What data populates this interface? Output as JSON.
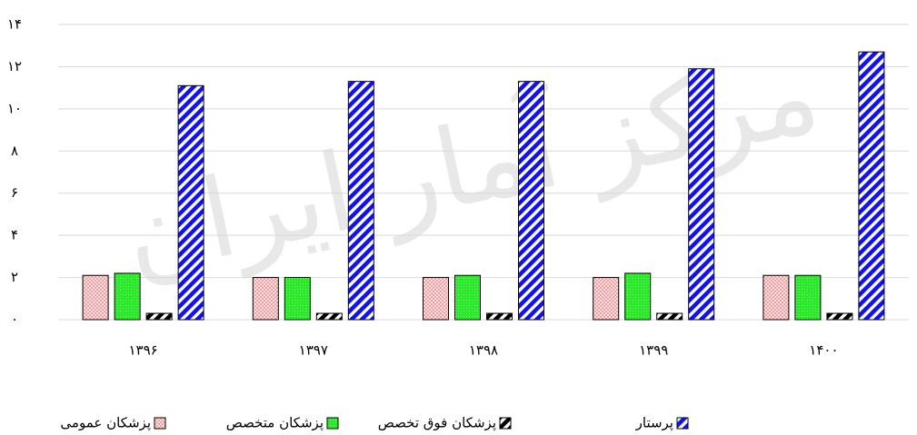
{
  "chart_data": {
    "type": "bar",
    "watermark": "مرکز آمار ایران",
    "categories": [
      "۱۳۹۶",
      "۱۳۹۷",
      "۱۳۹۸",
      "۱۳۹۹",
      "۱۴۰۰"
    ],
    "series": [
      {
        "name": "پزشکان عمومی",
        "color": "#f4a0a0",
        "values": [
          2.1,
          2.0,
          2.0,
          2.0,
          2.1
        ]
      },
      {
        "name": "پزشکان متخصص",
        "color": "#22ee22",
        "values": [
          2.2,
          2.0,
          2.1,
          2.2,
          2.1
        ]
      },
      {
        "name": "پزشکان فوق تخصص",
        "color": "#000000",
        "values": [
          0.3,
          0.3,
          0.3,
          0.3,
          0.3
        ]
      },
      {
        "name": "پرستار",
        "color": "#1010ff",
        "values": [
          11.1,
          11.3,
          11.3,
          11.9,
          12.7
        ]
      }
    ],
    "ylim": [
      0,
      14
    ],
    "yticks": [
      {
        "value": 0,
        "label": "۰"
      },
      {
        "value": 2,
        "label": "۲"
      },
      {
        "value": 4,
        "label": "۴"
      },
      {
        "value": 6,
        "label": "۶"
      },
      {
        "value": 8,
        "label": "۸"
      },
      {
        "value": 10,
        "label": "۱۰"
      },
      {
        "value": 12,
        "label": "۱۲"
      },
      {
        "value": 14,
        "label": "۱۴"
      }
    ],
    "grid": true,
    "legend": "bottom"
  }
}
